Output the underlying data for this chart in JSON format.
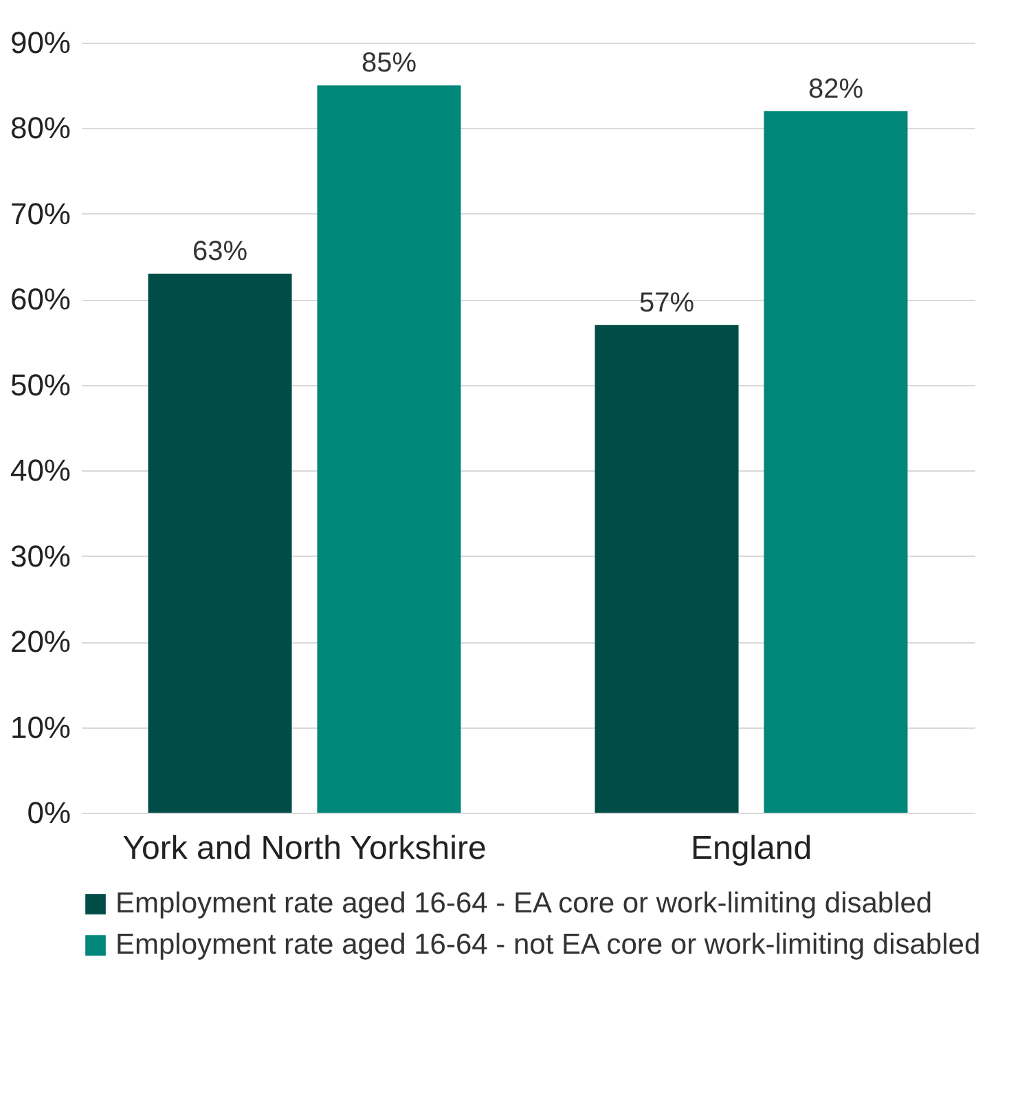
{
  "chart_data": {
    "type": "bar",
    "categories": [
      "York and North Yorkshire",
      "England"
    ],
    "series": [
      {
        "name": "Employment rate aged 16-64 - EA core or work-limiting disabled",
        "color": "#004d47",
        "values": [
          63,
          57
        ]
      },
      {
        "name": "Employment rate aged 16-64 - not EA core or work-limiting disabled",
        "color": "#00877a",
        "values": [
          85,
          82
        ]
      }
    ],
    "ylim": [
      0,
      90
    ],
    "yticks": [
      {
        "value": 0,
        "label": "0%"
      },
      {
        "value": 10,
        "label": "10%"
      },
      {
        "value": 20,
        "label": "20%"
      },
      {
        "value": 30,
        "label": "30%"
      },
      {
        "value": 40,
        "label": "40%"
      },
      {
        "value": 50,
        "label": "50%"
      },
      {
        "value": 60,
        "label": "60%"
      },
      {
        "value": 70,
        "label": "70%"
      },
      {
        "value": 80,
        "label": "80%"
      },
      {
        "value": 90,
        "label": "90%"
      }
    ],
    "value_labels": [
      [
        "63%",
        "57%"
      ],
      [
        "85%",
        "82%"
      ]
    ],
    "grid": "y",
    "legend": "bottom"
  }
}
